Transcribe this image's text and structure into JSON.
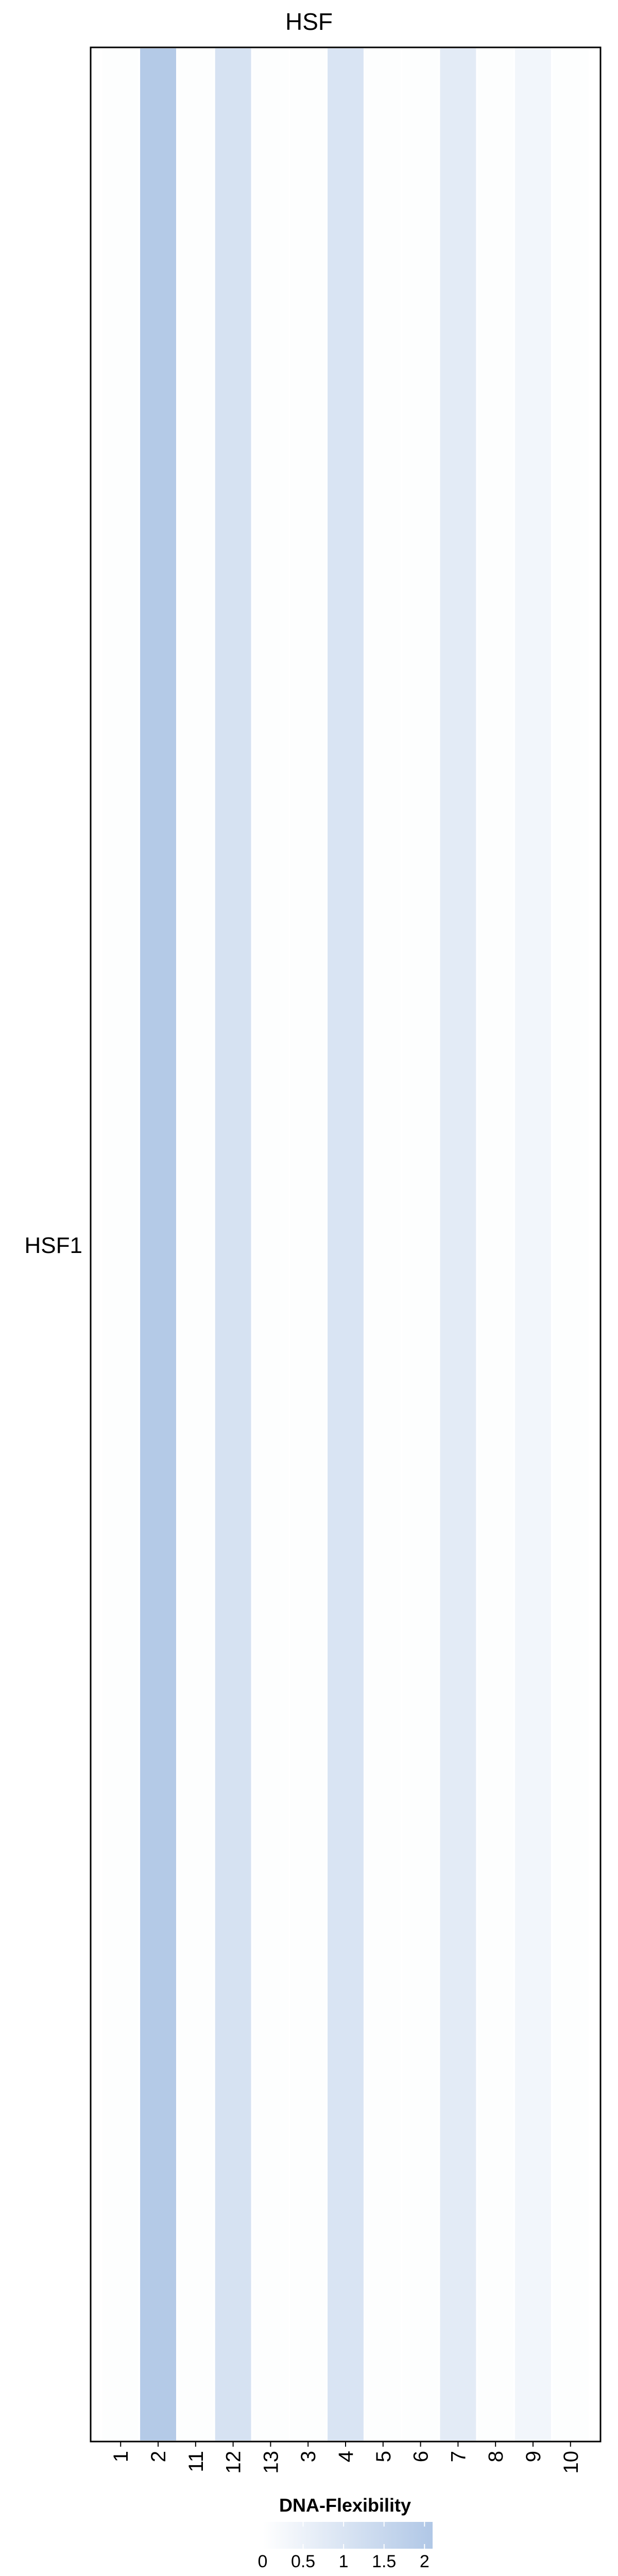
{
  "chart_data": {
    "type": "heatmap",
    "title": "HSF",
    "rows": [
      "HSF1"
    ],
    "columns": [
      "1",
      "2",
      "11",
      "12",
      "13",
      "3",
      "4",
      "5",
      "6",
      "7",
      "8",
      "9",
      "10"
    ],
    "values": [
      [
        0.05,
        2.0,
        0.05,
        1.1,
        0.05,
        0.05,
        1.0,
        0.05,
        0.05,
        0.75,
        0.05,
        0.35,
        0.05
      ]
    ],
    "color_scale": {
      "low": "#ffffff",
      "high": "#b0c7e6",
      "min": 0,
      "max": 2.1
    },
    "legend": {
      "title": "DNA-Flexibility",
      "ticks": [
        "0",
        "0.5",
        "1",
        "1.5",
        "2"
      ],
      "tick_values": [
        0,
        0.5,
        1,
        1.5,
        2
      ],
      "placement": "bottom"
    },
    "grid": false
  }
}
